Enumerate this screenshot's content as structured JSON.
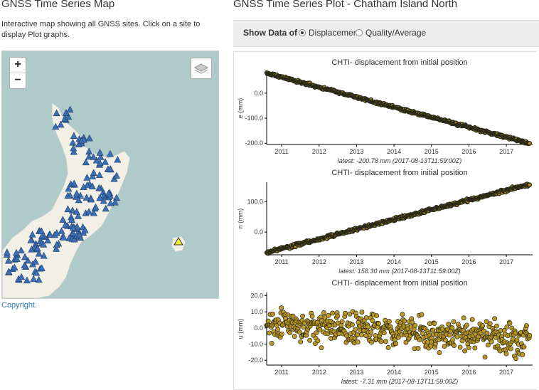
{
  "map_section": {
    "title": "GNSS Time Series Map",
    "description": "Interactive map showing all GNSS sites. Click on a site to display Plot graphs.",
    "zoom_in": "+",
    "zoom_out": "−",
    "copyright": "Copyright."
  },
  "plot_section": {
    "title": "GNSS Time Series Plot - Chatham Island North",
    "show_data_label": "Show Data of",
    "options": [
      {
        "label": "Displacement",
        "selected": true
      },
      {
        "label": "Quality/Average",
        "selected": false
      }
    ]
  },
  "colors": {
    "point_fill": "#b8931c",
    "line_dark": "#2a2a18",
    "selected_site": "#f2ee3a",
    "site": "#3b6fb6"
  },
  "chart_data": [
    {
      "type": "scatter",
      "title": "CHTI- displacement from initial position",
      "ylabel": "e (mm)",
      "x_ticks": [
        "2011",
        "2012",
        "2013",
        "2014",
        "2015",
        "2016",
        "2017"
      ],
      "y_ticks": [
        "0.0",
        "-100.0",
        "-200.0"
      ],
      "xlim": [
        2010.6,
        2017.7
      ],
      "ylim": [
        -205,
        85
      ],
      "x": [
        2010.6,
        2017.62
      ],
      "y": [
        80,
        -200.78
      ],
      "noise": 3,
      "latest": "latest: -200.78 mm (2017-08-13T11:59:00Z)"
    },
    {
      "type": "scatter",
      "title": "CHTI- displacement from initial position",
      "ylabel": "n (mm)",
      "x_ticks": [
        "2011",
        "2012",
        "2013",
        "2014",
        "2015",
        "2016",
        "2017"
      ],
      "y_ticks": [
        "100.0",
        "0.0"
      ],
      "xlim": [
        2010.6,
        2017.7
      ],
      "ylim": [
        -75,
        165
      ],
      "x": [
        2010.6,
        2017.62
      ],
      "y": [
        -68,
        158.3
      ],
      "noise": 3,
      "latest": "latest: 158.30 mm (2017-08-13T11:59:00Z)"
    },
    {
      "type": "scatter",
      "title": "CHTI- displacement from initial position",
      "ylabel": "u (mm)",
      "x_ticks": [
        "2011",
        "2012",
        "2013",
        "2014",
        "2015",
        "2016",
        "2017"
      ],
      "y_ticks": [
        "20.0",
        "10.0",
        "0.0",
        "-10.0",
        "-20.0"
      ],
      "xlim": [
        2010.6,
        2017.7
      ],
      "ylim": [
        -23,
        22
      ],
      "x": [
        2010.6,
        2017.62
      ],
      "y": [
        3,
        -7.31
      ],
      "noise": 6,
      "latest": "latest: -7.31 mm (2017-08-13T11:59:00Z)"
    }
  ]
}
